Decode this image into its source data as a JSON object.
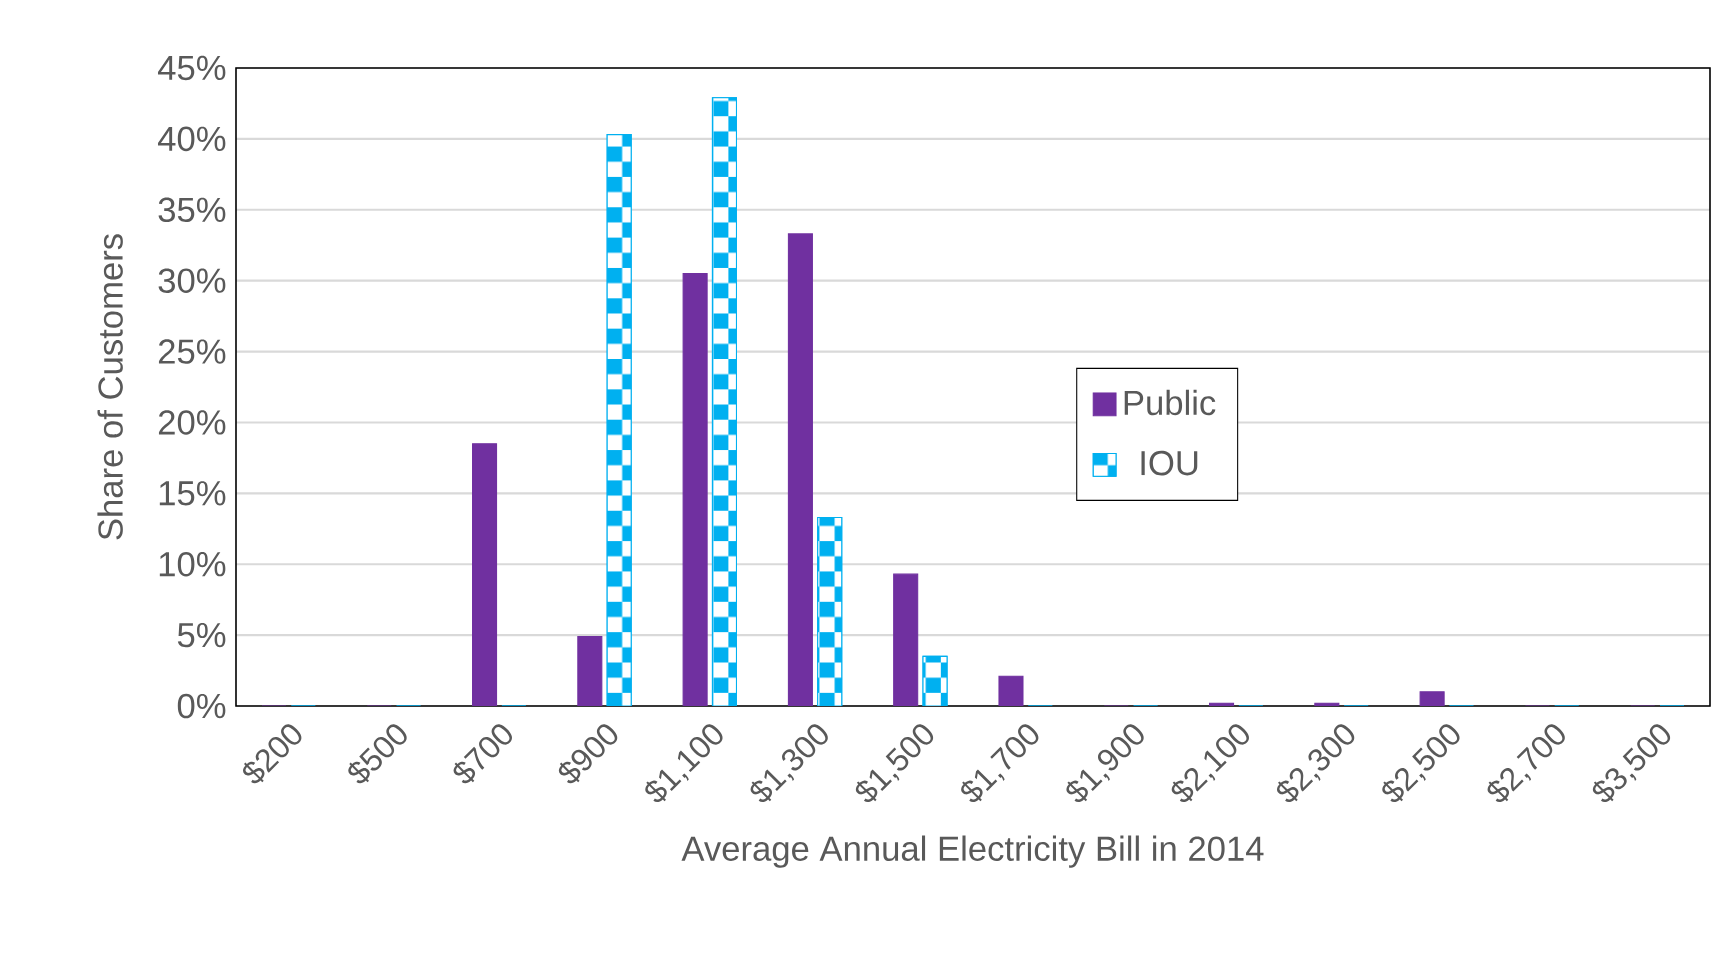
{
  "chart_data": {
    "type": "bar",
    "xlabel": "Average Annual Electricity Bill in 2014",
    "ylabel": "Share of Customers",
    "categories": [
      "$200",
      "$500",
      "$700",
      "$900",
      "$1,100",
      "$1,300",
      "$1,500",
      "$1,700",
      "$1,900",
      "$2,100",
      "$2,300",
      "$2,500",
      "$2,700",
      "$3,500"
    ],
    "series": [
      {
        "name": "Public",
        "color": "#7030a0",
        "values": [
          0,
          0,
          18.5,
          4.9,
          30.5,
          33.3,
          9.3,
          2.1,
          0,
          0.2,
          0.2,
          1.0,
          0,
          0
        ]
      },
      {
        "name": "IOU",
        "color": "#00b0f0",
        "values": [
          0,
          0,
          0,
          40.3,
          42.9,
          13.3,
          3.5,
          0,
          0,
          0,
          0,
          0,
          0,
          0
        ]
      }
    ],
    "ylim": [
      0,
      45
    ],
    "yticks": [
      {
        "value": 0,
        "label": "0%"
      },
      {
        "value": 5,
        "label": "5%"
      },
      {
        "value": 10,
        "label": "10%"
      },
      {
        "value": 15,
        "label": "15%"
      },
      {
        "value": 20,
        "label": "20%"
      },
      {
        "value": 25,
        "label": "25%"
      },
      {
        "value": 30,
        "label": "30%"
      },
      {
        "value": 35,
        "label": "35%"
      },
      {
        "value": 40,
        "label": "40%"
      },
      {
        "value": 45,
        "label": "45%"
      }
    ],
    "grid": "y",
    "legend": "center right"
  }
}
